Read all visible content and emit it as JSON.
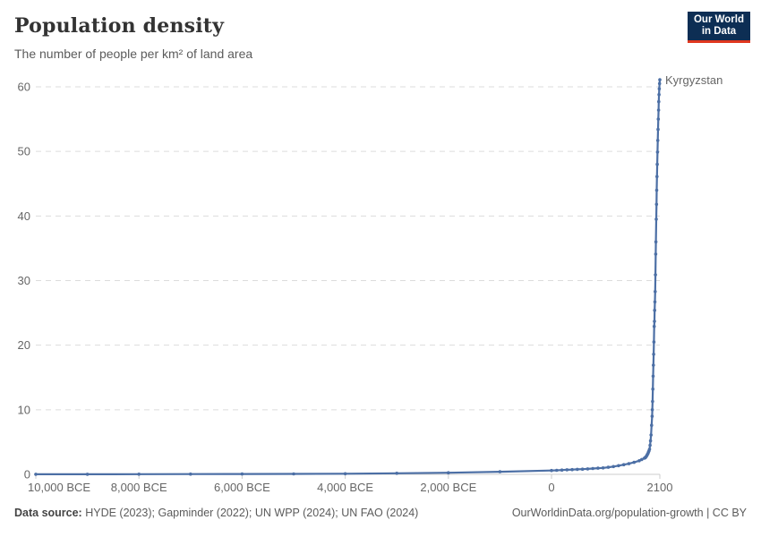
{
  "header": {
    "title": "Population density",
    "subtitle": "The number of people per km² of land area",
    "logo": {
      "line1": "Our World",
      "line2": "in Data",
      "bg_color": "#0d2e54",
      "accent_color": "#e0371f"
    }
  },
  "footer": {
    "source_label": "Data source:",
    "source_text": " HYDE (2023); Gapminder (2022); UN WPP (2024); UN FAO (2024)",
    "citation": "OurWorldinData.org/population-growth | CC BY"
  },
  "colors": {
    "line": "#4c6fa5",
    "grid": "#dcdcdc",
    "axis": "#cccccc",
    "tick_text": "#666666"
  },
  "chart_data": {
    "type": "line",
    "title": "Population density",
    "subtitle": "The number of people per km² of land area",
    "entity_label": "Kyrgyzstan",
    "xlim": [
      -10000,
      2100
    ],
    "ylim": [
      0,
      60
    ],
    "grid": "dashed-horizontal",
    "legend": "end-of-line-label",
    "y_ticks": [
      0,
      10,
      20,
      30,
      40,
      50,
      60
    ],
    "x_ticks": [
      {
        "value": -10000,
        "label": "10,000 BCE"
      },
      {
        "value": -8000,
        "label": "8,000 BCE"
      },
      {
        "value": -6000,
        "label": "6,000 BCE"
      },
      {
        "value": -4000,
        "label": "4,000 BCE"
      },
      {
        "value": -2000,
        "label": "2,000 BCE"
      },
      {
        "value": 0,
        "label": "0"
      },
      {
        "value": 2100,
        "label": "2100"
      }
    ],
    "series": [
      {
        "name": "Kyrgyzstan",
        "color": "#4c6fa5",
        "points": [
          [
            -10000,
            0.01
          ],
          [
            -9000,
            0.02
          ],
          [
            -8000,
            0.03
          ],
          [
            -7000,
            0.04
          ],
          [
            -6000,
            0.05
          ],
          [
            -5000,
            0.07
          ],
          [
            -4000,
            0.1
          ],
          [
            -3000,
            0.16
          ],
          [
            -2000,
            0.25
          ],
          [
            -1000,
            0.4
          ],
          [
            0,
            0.6
          ],
          [
            100,
            0.63
          ],
          [
            200,
            0.66
          ],
          [
            300,
            0.7
          ],
          [
            400,
            0.73
          ],
          [
            500,
            0.77
          ],
          [
            600,
            0.81
          ],
          [
            700,
            0.85
          ],
          [
            800,
            0.9
          ],
          [
            900,
            0.95
          ],
          [
            1000,
            1.0
          ],
          [
            1100,
            1.1
          ],
          [
            1200,
            1.2
          ],
          [
            1300,
            1.35
          ],
          [
            1400,
            1.5
          ],
          [
            1500,
            1.65
          ],
          [
            1600,
            1.85
          ],
          [
            1700,
            2.1
          ],
          [
            1750,
            2.3
          ],
          [
            1800,
            2.5
          ],
          [
            1810,
            2.55
          ],
          [
            1820,
            2.6
          ],
          [
            1830,
            2.7
          ],
          [
            1840,
            2.8
          ],
          [
            1850,
            2.95
          ],
          [
            1860,
            3.1
          ],
          [
            1870,
            3.25
          ],
          [
            1880,
            3.45
          ],
          [
            1890,
            3.65
          ],
          [
            1900,
            3.9
          ],
          [
            1910,
            4.5
          ],
          [
            1920,
            5.2
          ],
          [
            1930,
            6.1
          ],
          [
            1940,
            7.6
          ],
          [
            1950,
            9.0
          ],
          [
            1955,
            10.0
          ],
          [
            1960,
            11.3
          ],
          [
            1965,
            13.2
          ],
          [
            1970,
            15.2
          ],
          [
            1975,
            16.9
          ],
          [
            1980,
            18.6
          ],
          [
            1985,
            20.5
          ],
          [
            1990,
            22.9
          ],
          [
            1995,
            23.7
          ],
          [
            2000,
            25.4
          ],
          [
            2005,
            26.7
          ],
          [
            2010,
            28.3
          ],
          [
            2015,
            30.9
          ],
          [
            2020,
            34.1
          ],
          [
            2023,
            36.0
          ],
          [
            2030,
            39.5
          ],
          [
            2035,
            41.8
          ],
          [
            2040,
            44.0
          ],
          [
            2045,
            46.1
          ],
          [
            2050,
            48.0
          ],
          [
            2055,
            49.9
          ],
          [
            2060,
            51.7
          ],
          [
            2065,
            53.4
          ],
          [
            2070,
            55.0
          ],
          [
            2075,
            56.4
          ],
          [
            2080,
            57.7
          ],
          [
            2085,
            58.8
          ],
          [
            2090,
            59.7
          ],
          [
            2095,
            60.5
          ],
          [
            2100,
            61.1
          ]
        ]
      }
    ]
  }
}
